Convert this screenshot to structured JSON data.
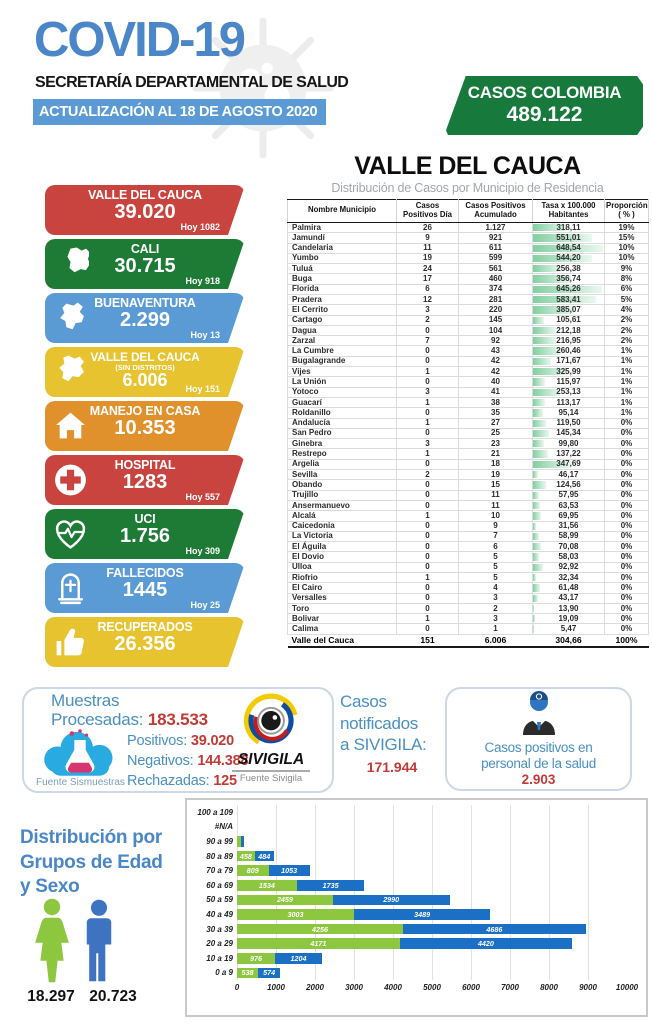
{
  "header": {
    "app_title": "COVID-19",
    "org": "SECRETARÍA DEPARTAMENTAL DE SALUD",
    "update": "ACTUALIZACIÓN AL 18 DE AGOSTO 2020",
    "colombia": {
      "label": "CASOS COLOMBIA",
      "value": "489.122",
      "color": "#17793B"
    }
  },
  "summary_cards": [
    {
      "title": "VALLE DEL CAUCA",
      "subtitle": "",
      "value": "39.020",
      "today": "Hoy 1082",
      "color": "#C9443F",
      "icon": ""
    },
    {
      "title": "CALI",
      "subtitle": "",
      "value": "30.715",
      "today": "Hoy 918",
      "color": "#1E7B36",
      "icon": "map-cali-icon"
    },
    {
      "title": "BUENAVENTURA",
      "subtitle": "",
      "value": "2.299",
      "today": "Hoy 13",
      "color": "#5B9BD5",
      "icon": "map-buenaventura-icon"
    },
    {
      "title": "VALLE DEL CAUCA",
      "subtitle": "(SIN DISTRITOS)",
      "value": "6.006",
      "today": "Hoy 151",
      "color": "#E7C32F",
      "icon": "map-valle-icon"
    },
    {
      "title": "MANEJO EN CASA",
      "subtitle": "",
      "value": "10.353",
      "today": "",
      "color": "#E0912C",
      "icon": "house-icon"
    },
    {
      "title": "HOSPITAL",
      "subtitle": "",
      "value": "1283",
      "today": "Hoy 557",
      "color": "#C9443F",
      "icon": "medical-cross-icon"
    },
    {
      "title": "UCI",
      "subtitle": "",
      "value": "1.756",
      "today": "Hoy 309",
      "color": "#1E7B36",
      "icon": "heart-pulse-icon"
    },
    {
      "title": "FALLECIDOS",
      "subtitle": "",
      "value": "1445",
      "today": "Hoy 25",
      "color": "#5B9BD5",
      "icon": "tombstone-icon"
    },
    {
      "title": "RECUPERADOS",
      "subtitle": "",
      "value": "26.356",
      "today": "",
      "color": "#E7C32F",
      "icon": "thumbs-up-icon"
    }
  ],
  "municipality_table": {
    "title": "VALLE DEL CAUCA",
    "subtitle": "Distribución de Casos por Municipio de Residencia",
    "columns": [
      "Nombre Municipio",
      "Casos Positivos Día",
      "Casos Positivos Acumulado",
      "Tasa x 100.000 Habitantes",
      "Proporción ( % )"
    ],
    "tasa_bar_max": 660,
    "rows": [
      [
        "Palmira",
        "26",
        "1.127",
        "318,11",
        "19%"
      ],
      [
        "Jamundí",
        "9",
        "921",
        "551,01",
        "15%"
      ],
      [
        "Candelaria",
        "11",
        "611",
        "648,54",
        "10%"
      ],
      [
        "Yumbo",
        "19",
        "599",
        "544,20",
        "10%"
      ],
      [
        "Tuluá",
        "24",
        "561",
        "256,38",
        "9%"
      ],
      [
        "Buga",
        "17",
        "460",
        "356,74",
        "8%"
      ],
      [
        "Florida",
        "6",
        "374",
        "645,26",
        "6%"
      ],
      [
        "Pradera",
        "12",
        "281",
        "583,41",
        "5%"
      ],
      [
        "El Cerrito",
        "3",
        "220",
        "385,07",
        "4%"
      ],
      [
        "Cartago",
        "2",
        "145",
        "105,61",
        "2%"
      ],
      [
        "Dagua",
        "0",
        "104",
        "212,18",
        "2%"
      ],
      [
        "Zarzal",
        "7",
        "92",
        "216,95",
        "2%"
      ],
      [
        "La Cumbre",
        "0",
        "43",
        "260,46",
        "1%"
      ],
      [
        "Bugalagrande",
        "0",
        "42",
        "171,67",
        "1%"
      ],
      [
        "Vijes",
        "1",
        "42",
        "325,99",
        "1%"
      ],
      [
        "La Unión",
        "0",
        "40",
        "115,97",
        "1%"
      ],
      [
        "Yotoco",
        "3",
        "41",
        "253,13",
        "1%"
      ],
      [
        "Guacarí",
        "1",
        "38",
        "113,17",
        "1%"
      ],
      [
        "Roldanillo",
        "0",
        "35",
        "95,14",
        "1%"
      ],
      [
        "Andalucía",
        "1",
        "27",
        "119,50",
        "0%"
      ],
      [
        "San Pedro",
        "0",
        "25",
        "145,34",
        "0%"
      ],
      [
        "Ginebra",
        "3",
        "23",
        "99,80",
        "0%"
      ],
      [
        "Restrepo",
        "1",
        "21",
        "137,22",
        "0%"
      ],
      [
        "Argelia",
        "0",
        "18",
        "347,69",
        "0%"
      ],
      [
        "Sevilla",
        "2",
        "19",
        "46,17",
        "0%"
      ],
      [
        "Obando",
        "0",
        "15",
        "124,56",
        "0%"
      ],
      [
        "Trujillo",
        "0",
        "11",
        "57,95",
        "0%"
      ],
      [
        "Ansermanuevo",
        "0",
        "11",
        "63,53",
        "0%"
      ],
      [
        "Alcalá",
        "1",
        "10",
        "69,95",
        "0%"
      ],
      [
        "Caicedonia",
        "0",
        "9",
        "31,56",
        "0%"
      ],
      [
        "La Victoria",
        "0",
        "7",
        "58,99",
        "0%"
      ],
      [
        "El Águila",
        "0",
        "6",
        "70,08",
        "0%"
      ],
      [
        "El Dovio",
        "0",
        "5",
        "58,03",
        "0%"
      ],
      [
        "Ulloa",
        "0",
        "5",
        "92,92",
        "0%"
      ],
      [
        "Riofrio",
        "1",
        "5",
        "32,34",
        "0%"
      ],
      [
        "El Cairo",
        "0",
        "4",
        "61,48",
        "0%"
      ],
      [
        "Versalles",
        "0",
        "3",
        "43,17",
        "0%"
      ],
      [
        "Toro",
        "0",
        "2",
        "13,90",
        "0%"
      ],
      [
        "Bolivar",
        "1",
        "3",
        "19,09",
        "0%"
      ],
      [
        "Calima",
        "0",
        "1",
        "5,47",
        "0%"
      ]
    ],
    "total_row": [
      "Valle del Cauca",
      "151",
      "6.006",
      "304,66",
      "100%"
    ]
  },
  "samples": {
    "title_line1": "Muestras",
    "title_line2": "Procesadas:",
    "processed": "183.533",
    "items": [
      {
        "label": "Positivos:",
        "value": "39.020"
      },
      {
        "label": "Negativos:",
        "value": "144.388"
      },
      {
        "label": "Rechazadas:",
        "value": "125"
      }
    ],
    "source": "Fuente Sismuestras"
  },
  "sivigila_logo": {
    "name": "SIVIGILA",
    "source": "Fuente Sivigila"
  },
  "notified": {
    "line1": "Casos",
    "line2": "notificados",
    "line3": "a SIVIGILA:",
    "value": "171.944"
  },
  "health_staff": {
    "label_line1": "Casos positivos en",
    "label_line2": "personal de  la salud",
    "value": "2.903"
  },
  "age_sex": {
    "title_line1": "Distribución por",
    "title_line2": "Grupos de Edad",
    "title_line3": "y Sexo",
    "female_total": "18.297",
    "male_total": "20.723"
  },
  "chart_data": {
    "type": "bar",
    "orientation": "horizontal",
    "stacked": true,
    "title": "Distribución por Grupos de Edad y Sexo",
    "categories": [
      "100 a 109",
      "#N/A",
      "90 a 99",
      "80 a 89",
      "70 a 79",
      "60 a 69",
      "50 a 59",
      "40 a 49",
      "30 a 39",
      "20 a 29",
      "10 a 19",
      "0 a 9"
    ],
    "series": [
      {
        "name": "Mujeres",
        "color": "#8DC63F",
        "total": 18297,
        "values": [
          0,
          0,
          93,
          458,
          809,
          1534,
          2459,
          3003,
          4256,
          4171,
          976,
          538
        ]
      },
      {
        "name": "Hombres",
        "color": "#1B6FC4",
        "total": 20723,
        "values": [
          0,
          0,
          88,
          484,
          1053,
          1735,
          2990,
          3489,
          4686,
          4420,
          1204,
          574
        ]
      }
    ],
    "xlim": [
      0,
      10000
    ],
    "x_ticks": [
      0,
      1000,
      2000,
      3000,
      4000,
      5000,
      6000,
      7000,
      8000,
      9000,
      10000
    ],
    "grid": true,
    "legend": "none",
    "data_label_min": 300
  },
  "colors": {
    "accent_blue": "#4A86C8",
    "banner_blue": "#5B9BD5",
    "value_red": "#C13A36",
    "label_blue": "#4A90C2",
    "female_green": "#8DC63F",
    "male_blue": "#3E73C1"
  }
}
